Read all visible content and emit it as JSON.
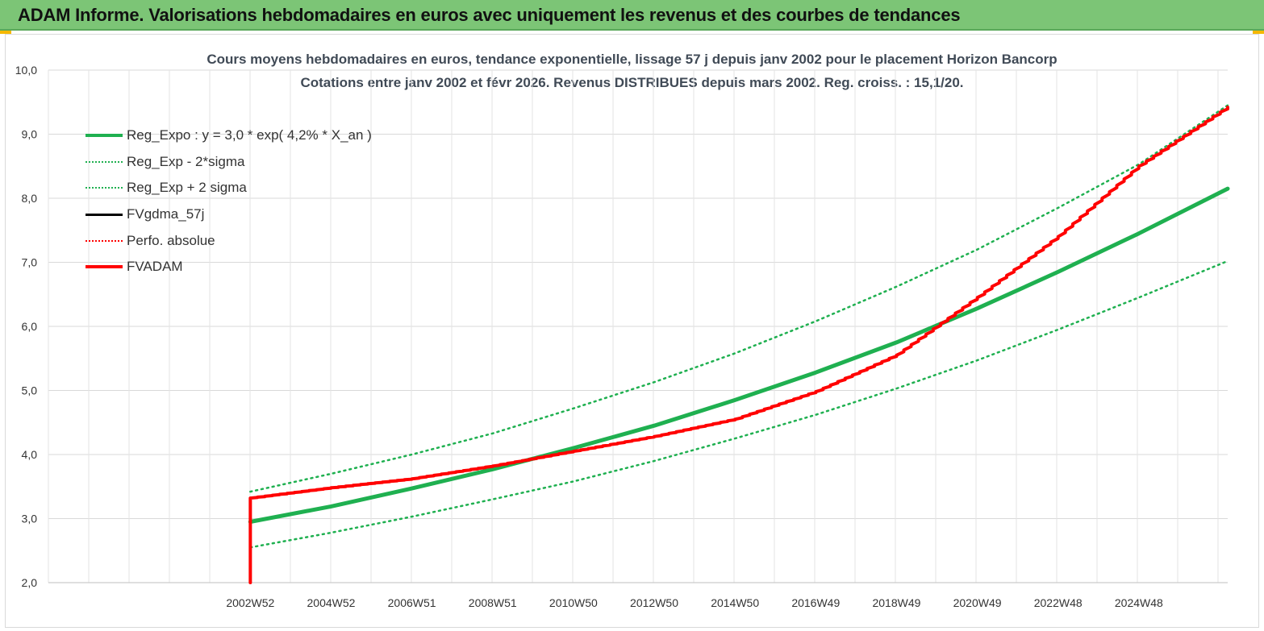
{
  "banner": {
    "title": "ADAM Informe. Valorisations hebdomadaires en euros avec uniquement les revenus et des courbes de tendances"
  },
  "chart_data": {
    "type": "line",
    "title": "Cours moyens hebdomadaires en euros, tendance exponentielle, lissage 57 j depuis janv 2002 pour le placement Horizon Bancorp",
    "subtitle": "Cotations entre janv 2002 et févr 2026. Revenus DISTRIBUES depuis mars 2002. Reg. croiss. : 15,1/20.",
    "xlabel": "",
    "ylabel": "",
    "ylim": [
      2.0,
      10.0
    ],
    "y_ticks": [
      "2,0",
      "3,0",
      "4,0",
      "5,0",
      "6,0",
      "7,0",
      "8,0",
      "9,0",
      "10,0"
    ],
    "x_ticks": [
      "2002W52",
      "2004W52",
      "2006W51",
      "2008W51",
      "2010W50",
      "2012W50",
      "2014W50",
      "2016W49",
      "2018W49",
      "2020W49",
      "2022W48",
      "2024W48"
    ],
    "x_range": [
      1997.0,
      2026.2
    ],
    "grid": true,
    "legend_position": "top-left",
    "series": [
      {
        "name": "Reg_Expo : y = 3,0 * exp( 4,2% *  X_an )",
        "color": "#1fb050",
        "style": "solid",
        "width": 5,
        "x": [
          2002.0,
          2004.0,
          2006.0,
          2008.0,
          2010.0,
          2012.0,
          2014.0,
          2016.0,
          2018.0,
          2020.0,
          2022.0,
          2024.0,
          2026.2
        ],
        "y": [
          2.95,
          3.19,
          3.47,
          3.77,
          4.1,
          4.45,
          4.85,
          5.28,
          5.75,
          6.28,
          6.85,
          7.45,
          8.15
        ]
      },
      {
        "name": "Reg_Exp - 2*sigma",
        "color": "#1fb050",
        "style": "dotted",
        "width": 2.5,
        "x": [
          2002.0,
          2004.0,
          2006.0,
          2008.0,
          2010.0,
          2012.0,
          2014.0,
          2016.0,
          2018.0,
          2020.0,
          2022.0,
          2024.0,
          2026.2
        ],
        "y": [
          2.55,
          2.78,
          3.03,
          3.3,
          3.58,
          3.9,
          4.25,
          4.62,
          5.03,
          5.47,
          5.95,
          6.45,
          7.02
        ]
      },
      {
        "name": "Reg_Exp + 2 sigma",
        "color": "#1fb050",
        "style": "dotted",
        "width": 2.5,
        "x": [
          2002.0,
          2004.0,
          2006.0,
          2008.0,
          2010.0,
          2012.0,
          2014.0,
          2016.0,
          2018.0,
          2020.0,
          2022.0,
          2024.0,
          2026.2
        ],
        "y": [
          3.42,
          3.7,
          4.0,
          4.33,
          4.72,
          5.13,
          5.58,
          6.08,
          6.62,
          7.2,
          7.85,
          8.53,
          9.45
        ]
      },
      {
        "name": "FVgdma_57j",
        "color": "#000000",
        "style": "solid",
        "width": 2.5,
        "x": [],
        "y": []
      },
      {
        "name": "Perfo. absolue",
        "color": "#ff0000",
        "style": "dotted",
        "width": 2,
        "x": [],
        "y": []
      },
      {
        "name": "FVADAM",
        "color": "#ff0000",
        "style": "solid",
        "width": 4,
        "x": [
          2002.0,
          2002.0,
          2004.0,
          2006.0,
          2008.0,
          2010.0,
          2012.0,
          2014.0,
          2016.0,
          2018.0,
          2020.0,
          2022.0,
          2024.0,
          2026.2
        ],
        "y": [
          2.0,
          3.32,
          3.48,
          3.62,
          3.82,
          4.05,
          4.28,
          4.55,
          4.98,
          5.55,
          6.45,
          7.4,
          8.5,
          9.42
        ]
      }
    ]
  }
}
